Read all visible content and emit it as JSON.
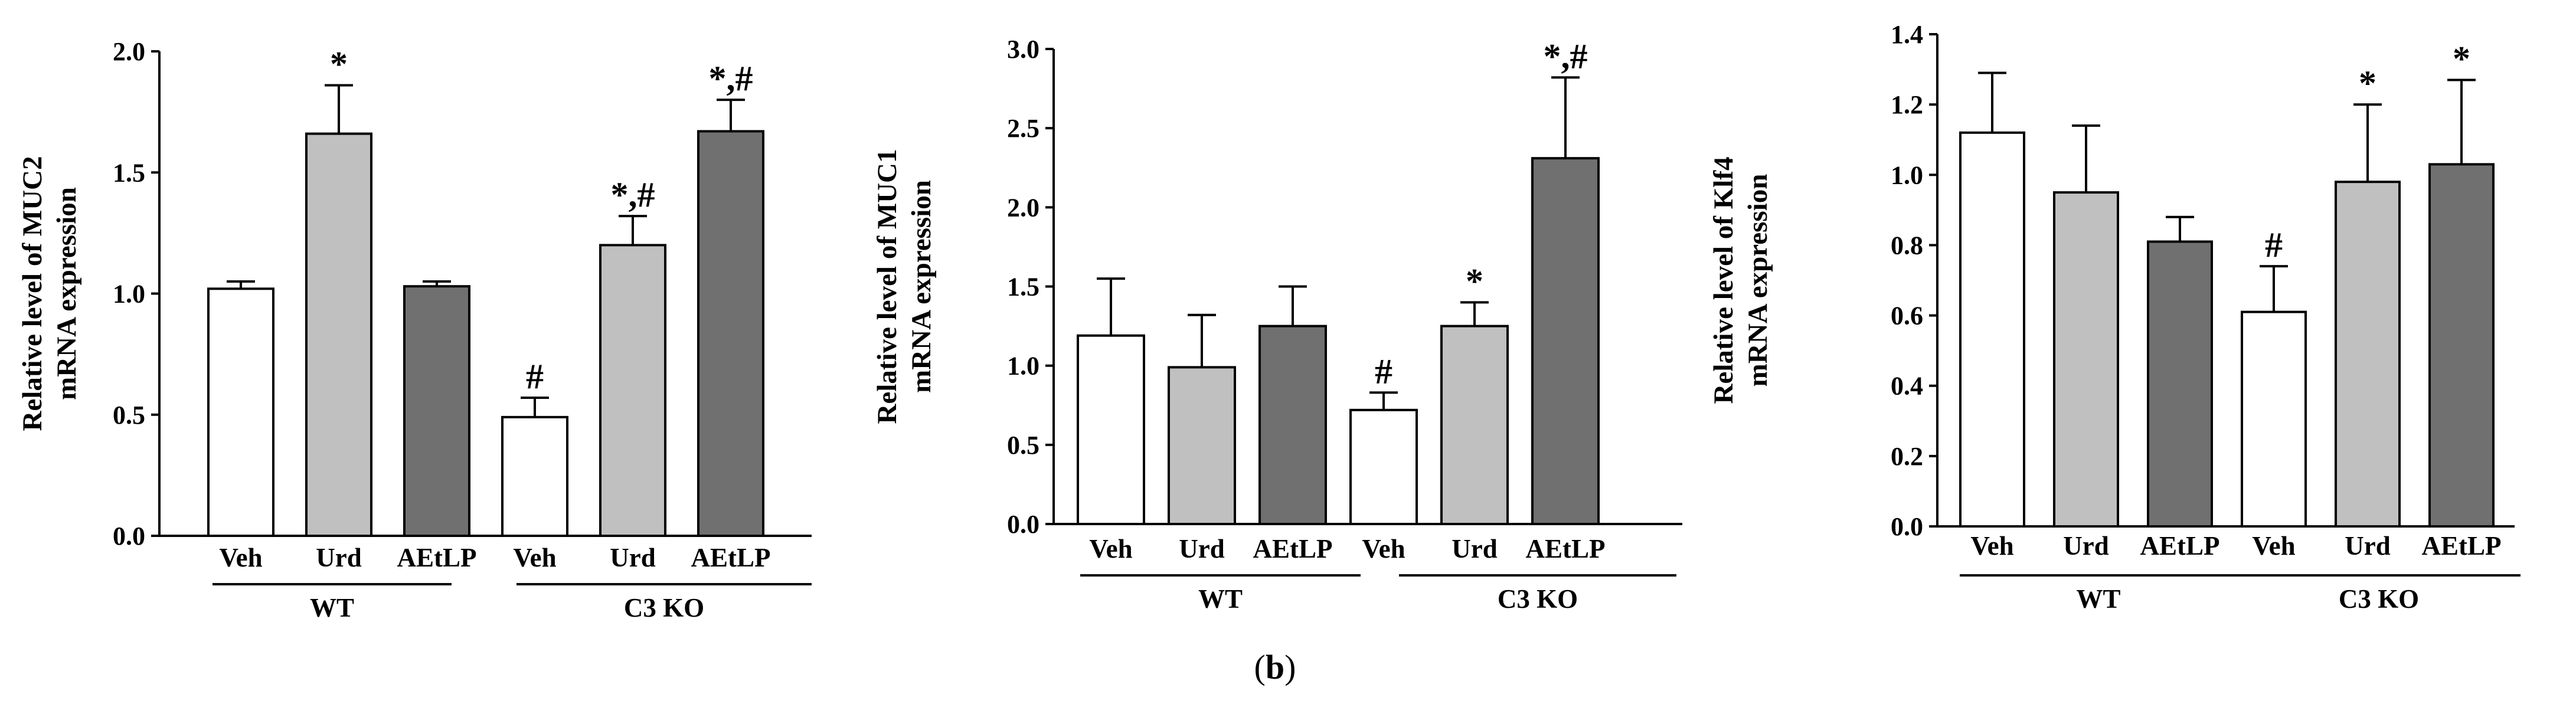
{
  "figure": {
    "caption_open": "(",
    "caption_label": "b",
    "caption_close": ")"
  },
  "chart_data": [
    {
      "type": "bar",
      "title": "",
      "xlabel": "",
      "ylabel_line1": "Relative level of MUC2",
      "ylabel_line2": "mRNA expression",
      "ylim": [
        0,
        2.0
      ],
      "yticks": [
        "0.0",
        "0.5",
        "1.0",
        "1.5",
        "2.0"
      ],
      "ytick_values": [
        0,
        0.5,
        1.0,
        1.5,
        2.0
      ],
      "categories": [
        "Veh",
        "Urd",
        "AEtLP",
        "Veh",
        "Urd",
        "AEtLP"
      ],
      "groups": [
        {
          "label": "WT",
          "members": [
            0,
            1,
            2
          ]
        },
        {
          "label": "C3 KO",
          "members": [
            3,
            4,
            5
          ]
        }
      ],
      "values": [
        1.02,
        1.66,
        1.03,
        0.49,
        1.2,
        1.67
      ],
      "errors": [
        0.03,
        0.2,
        0.02,
        0.08,
        0.12,
        0.13
      ],
      "annotations": [
        "",
        "*",
        "",
        "#",
        "*,#",
        "*,#"
      ],
      "bar_colors": [
        "#ffffff",
        "#c0c0c0",
        "#707070",
        "#ffffff",
        "#c0c0c0",
        "#707070"
      ]
    },
    {
      "type": "bar",
      "title": "",
      "xlabel": "",
      "ylabel_line1": "Relative level of MUC1",
      "ylabel_line2": "mRNA expression",
      "ylim": [
        0,
        3.0
      ],
      "yticks": [
        "0.0",
        "0.5",
        "1.0",
        "1.5",
        "2.0",
        "2.5",
        "3.0"
      ],
      "ytick_values": [
        0,
        0.5,
        1.0,
        1.5,
        2.0,
        2.5,
        3.0
      ],
      "categories": [
        "Veh",
        "Urd",
        "AEtLP",
        "Veh",
        "Urd",
        "AEtLP"
      ],
      "groups": [
        {
          "label": "WT",
          "members": [
            0,
            1,
            2
          ]
        },
        {
          "label": "C3 KO",
          "members": [
            3,
            4,
            5
          ]
        }
      ],
      "values": [
        1.19,
        0.99,
        1.25,
        0.72,
        1.25,
        2.31
      ],
      "errors": [
        0.36,
        0.33,
        0.25,
        0.11,
        0.15,
        0.51
      ],
      "annotations": [
        "",
        "",
        "",
        "#",
        "*",
        "*,#"
      ],
      "bar_colors": [
        "#ffffff",
        "#c0c0c0",
        "#707070",
        "#ffffff",
        "#c0c0c0",
        "#707070"
      ]
    },
    {
      "type": "bar",
      "title": "",
      "xlabel": "",
      "ylabel_line1": "Relative level of Klf4",
      "ylabel_line2": "mRNA expression",
      "ylim": [
        0,
        1.4
      ],
      "yticks": [
        "0.0",
        "0.2",
        "0.4",
        "0.6",
        "0.8",
        "1.0",
        "1.2",
        "1.4"
      ],
      "ytick_values": [
        0,
        0.2,
        0.4,
        0.6,
        0.8,
        1.0,
        1.2,
        1.4
      ],
      "categories": [
        "Veh",
        "Urd",
        "AEtLP",
        "Veh",
        "Urd",
        "AEtLP"
      ],
      "groups": [
        {
          "label": "WT",
          "members": [
            0,
            1,
            2
          ]
        },
        {
          "label": "C3 KO",
          "members": [
            3,
            4,
            5
          ]
        }
      ],
      "values": [
        1.12,
        0.95,
        0.81,
        0.61,
        0.98,
        1.03
      ],
      "errors": [
        0.17,
        0.19,
        0.07,
        0.13,
        0.22,
        0.24
      ],
      "annotations": [
        "",
        "",
        "",
        "#",
        "*",
        "*"
      ],
      "bar_colors": [
        "#ffffff",
        "#c0c0c0",
        "#707070",
        "#ffffff",
        "#c0c0c0",
        "#707070"
      ]
    }
  ]
}
